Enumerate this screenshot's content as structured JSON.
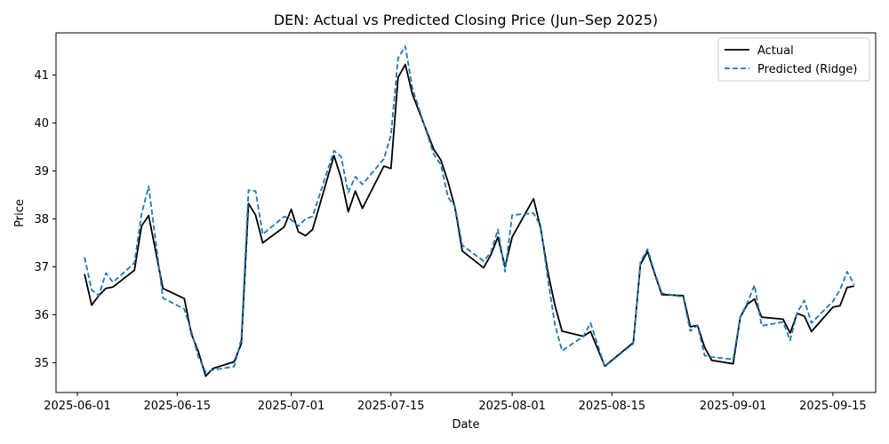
{
  "chart_data": {
    "type": "line",
    "title": "DEN: Actual vs Predicted Closing Price (Jun–Sep 2025)",
    "xlabel": "Date",
    "ylabel": "Price",
    "xlim": [
      "2025-05-29",
      "2025-09-21"
    ],
    "ylim": [
      34.38,
      41.88
    ],
    "x_ticks": [
      "2025-06-01",
      "2025-06-15",
      "2025-07-01",
      "2025-07-15",
      "2025-08-01",
      "2025-08-15",
      "2025-09-01",
      "2025-09-15"
    ],
    "y_ticks": [
      35,
      36,
      37,
      38,
      39,
      40,
      41
    ],
    "legend_position": "top-right",
    "grid": false,
    "series": [
      {
        "name": "Actual",
        "color": "#000000",
        "style": "solid",
        "points": [
          [
            "2025-06-02",
            36.85
          ],
          [
            "2025-06-03",
            36.2
          ],
          [
            "2025-06-04",
            36.4
          ],
          [
            "2025-06-05",
            36.55
          ],
          [
            "2025-06-06",
            36.58
          ],
          [
            "2025-06-09",
            36.93
          ],
          [
            "2025-06-10",
            37.85
          ],
          [
            "2025-06-11",
            38.07
          ],
          [
            "2025-06-13",
            36.55
          ],
          [
            "2025-06-16",
            36.34
          ],
          [
            "2025-06-17",
            35.6
          ],
          [
            "2025-06-18",
            35.22
          ],
          [
            "2025-06-19",
            34.72
          ],
          [
            "2025-06-20",
            34.88
          ],
          [
            "2025-06-23",
            35.02
          ],
          [
            "2025-06-24",
            35.4
          ],
          [
            "2025-06-25",
            38.32
          ],
          [
            "2025-06-26",
            38.08
          ],
          [
            "2025-06-27",
            37.5
          ],
          [
            "2025-06-30",
            37.83
          ],
          [
            "2025-07-01",
            38.2
          ],
          [
            "2025-07-02",
            37.73
          ],
          [
            "2025-07-03",
            37.65
          ],
          [
            "2025-07-04",
            37.78
          ],
          [
            "2025-07-07",
            39.32
          ],
          [
            "2025-07-08",
            38.85
          ],
          [
            "2025-07-09",
            38.15
          ],
          [
            "2025-07-10",
            38.58
          ],
          [
            "2025-07-11",
            38.22
          ],
          [
            "2025-07-14",
            39.1
          ],
          [
            "2025-07-15",
            39.05
          ],
          [
            "2025-07-16",
            40.95
          ],
          [
            "2025-07-17",
            41.22
          ],
          [
            "2025-07-18",
            40.6
          ],
          [
            "2025-07-21",
            39.45
          ],
          [
            "2025-07-22",
            39.23
          ],
          [
            "2025-07-23",
            38.77
          ],
          [
            "2025-07-24",
            38.22
          ],
          [
            "2025-07-25",
            37.33
          ],
          [
            "2025-07-28",
            36.98
          ],
          [
            "2025-07-29",
            37.25
          ],
          [
            "2025-07-30",
            37.62
          ],
          [
            "2025-07-31",
            37.0
          ],
          [
            "2025-08-01",
            37.62
          ],
          [
            "2025-08-04",
            38.42
          ],
          [
            "2025-08-05",
            37.8
          ],
          [
            "2025-08-06",
            36.9
          ],
          [
            "2025-08-07",
            36.2
          ],
          [
            "2025-08-08",
            35.66
          ],
          [
            "2025-08-11",
            35.55
          ],
          [
            "2025-08-12",
            35.65
          ],
          [
            "2025-08-14",
            34.93
          ],
          [
            "2025-08-18",
            35.42
          ],
          [
            "2025-08-19",
            37.05
          ],
          [
            "2025-08-20",
            37.32
          ],
          [
            "2025-08-21",
            36.85
          ],
          [
            "2025-08-22",
            36.42
          ],
          [
            "2025-08-25",
            36.4
          ],
          [
            "2025-08-26",
            35.75
          ],
          [
            "2025-08-27",
            35.78
          ],
          [
            "2025-08-28",
            35.32
          ],
          [
            "2025-08-29",
            35.05
          ],
          [
            "2025-09-01",
            34.98
          ],
          [
            "2025-09-02",
            35.95
          ],
          [
            "2025-09-03",
            36.22
          ],
          [
            "2025-09-04",
            36.33
          ],
          [
            "2025-09-05",
            35.95
          ],
          [
            "2025-09-08",
            35.91
          ],
          [
            "2025-09-09",
            35.62
          ],
          [
            "2025-09-10",
            36.03
          ],
          [
            "2025-09-11",
            35.97
          ],
          [
            "2025-09-12",
            35.65
          ],
          [
            "2025-09-15",
            36.16
          ],
          [
            "2025-09-16",
            36.19
          ],
          [
            "2025-09-17",
            36.57
          ],
          [
            "2025-09-18",
            36.6
          ]
        ]
      },
      {
        "name": "Predicted (Ridge)",
        "color": "#1f77b4",
        "style": "dashed",
        "points": [
          [
            "2025-06-02",
            37.2
          ],
          [
            "2025-06-03",
            36.52
          ],
          [
            "2025-06-04",
            36.4
          ],
          [
            "2025-06-05",
            36.87
          ],
          [
            "2025-06-06",
            36.68
          ],
          [
            "2025-06-09",
            37.08
          ],
          [
            "2025-06-10",
            38.1
          ],
          [
            "2025-06-11",
            38.68
          ],
          [
            "2025-06-13",
            36.35
          ],
          [
            "2025-06-16",
            36.12
          ],
          [
            "2025-06-17",
            35.65
          ],
          [
            "2025-06-18",
            35.12
          ],
          [
            "2025-06-19",
            34.8
          ],
          [
            "2025-06-20",
            34.85
          ],
          [
            "2025-06-23",
            34.92
          ],
          [
            "2025-06-24",
            35.5
          ],
          [
            "2025-06-25",
            38.6
          ],
          [
            "2025-06-26",
            38.58
          ],
          [
            "2025-06-27",
            37.68
          ],
          [
            "2025-06-30",
            38.05
          ],
          [
            "2025-07-01",
            37.98
          ],
          [
            "2025-07-02",
            37.85
          ],
          [
            "2025-07-03",
            38.0
          ],
          [
            "2025-07-04",
            38.05
          ],
          [
            "2025-07-07",
            39.42
          ],
          [
            "2025-07-08",
            39.3
          ],
          [
            "2025-07-09",
            38.55
          ],
          [
            "2025-07-10",
            38.88
          ],
          [
            "2025-07-11",
            38.72
          ],
          [
            "2025-07-14",
            39.25
          ],
          [
            "2025-07-15",
            39.75
          ],
          [
            "2025-07-16",
            41.35
          ],
          [
            "2025-07-17",
            41.6
          ],
          [
            "2025-07-18",
            40.72
          ],
          [
            "2025-07-21",
            39.35
          ],
          [
            "2025-07-22",
            39.13
          ],
          [
            "2025-07-23",
            38.45
          ],
          [
            "2025-07-24",
            38.25
          ],
          [
            "2025-07-25",
            37.45
          ],
          [
            "2025-07-28",
            37.12
          ],
          [
            "2025-07-29",
            37.3
          ],
          [
            "2025-07-30",
            37.78
          ],
          [
            "2025-07-31",
            36.9
          ],
          [
            "2025-08-01",
            38.08
          ],
          [
            "2025-08-04",
            38.12
          ],
          [
            "2025-08-05",
            37.85
          ],
          [
            "2025-08-06",
            36.75
          ],
          [
            "2025-08-07",
            35.8
          ],
          [
            "2025-08-08",
            35.25
          ],
          [
            "2025-08-11",
            35.55
          ],
          [
            "2025-08-12",
            35.83
          ],
          [
            "2025-08-14",
            34.92
          ],
          [
            "2025-08-18",
            35.4
          ],
          [
            "2025-08-19",
            37.1
          ],
          [
            "2025-08-20",
            37.37
          ],
          [
            "2025-08-21",
            36.88
          ],
          [
            "2025-08-22",
            36.45
          ],
          [
            "2025-08-25",
            36.37
          ],
          [
            "2025-08-26",
            35.66
          ],
          [
            "2025-08-27",
            35.78
          ],
          [
            "2025-08-28",
            35.15
          ],
          [
            "2025-08-29",
            35.12
          ],
          [
            "2025-09-01",
            35.07
          ],
          [
            "2025-09-02",
            35.96
          ],
          [
            "2025-09-03",
            36.25
          ],
          [
            "2025-09-04",
            36.62
          ],
          [
            "2025-09-05",
            35.77
          ],
          [
            "2025-09-08",
            35.85
          ],
          [
            "2025-09-09",
            35.47
          ],
          [
            "2025-09-10",
            36.05
          ],
          [
            "2025-09-11",
            36.3
          ],
          [
            "2025-09-12",
            35.83
          ],
          [
            "2025-09-15",
            36.28
          ],
          [
            "2025-09-16",
            36.52
          ],
          [
            "2025-09-17",
            36.9
          ],
          [
            "2025-09-18",
            36.63
          ]
        ]
      }
    ]
  }
}
